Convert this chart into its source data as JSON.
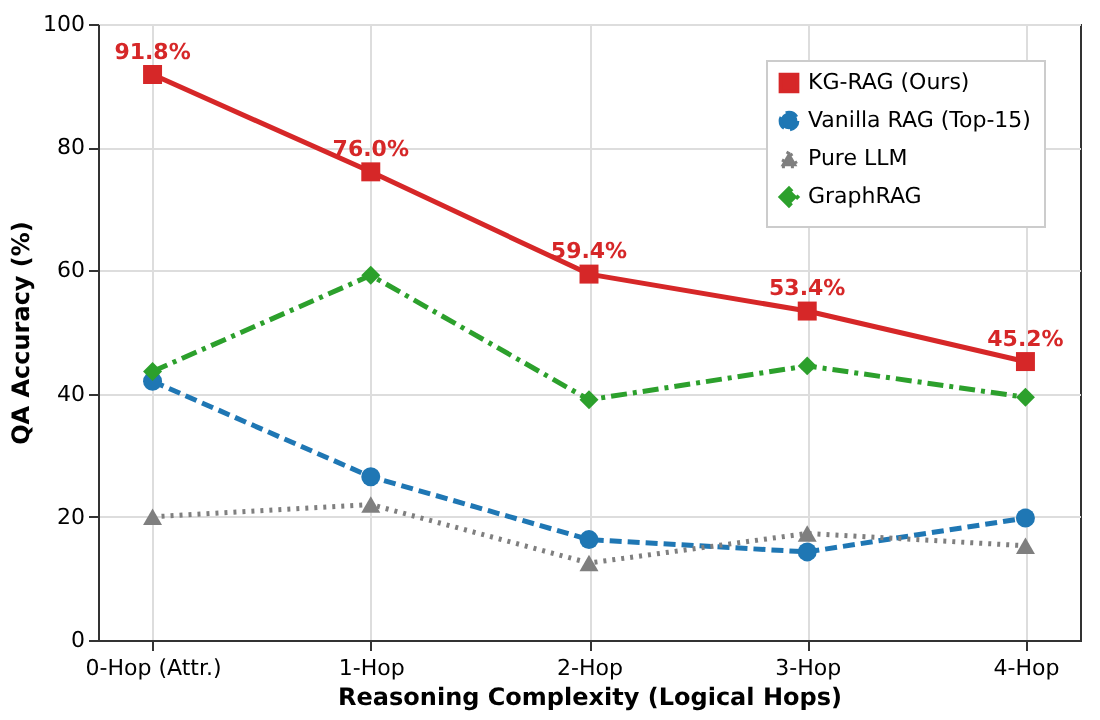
{
  "chart_data": {
    "type": "line",
    "xlabel": "Reasoning Complexity (Logical Hops)",
    "ylabel": "QA Accuracy (%)",
    "categories": [
      "0-Hop (Attr.)",
      "1-Hop",
      "2-Hop",
      "3-Hop",
      "4-Hop"
    ],
    "series": [
      {
        "name": "KG-RAG (Ours)",
        "color": "#d62728",
        "marker": "square",
        "line_style": "solid",
        "values": [
          91.8,
          76.0,
          59.4,
          53.4,
          45.2
        ],
        "value_labels": [
          "91.8%",
          "76.0%",
          "59.4%",
          "53.4%",
          "45.2%"
        ]
      },
      {
        "name": "Vanilla RAG (Top-15)",
        "color": "#1f77b4",
        "marker": "circle",
        "line_style": "dashed",
        "values": [
          42,
          26.5,
          16.3,
          14.3,
          19.8
        ]
      },
      {
        "name": "Pure LLM",
        "color": "#7f7f7f",
        "marker": "triangle",
        "line_style": "dotted",
        "values": [
          20,
          22,
          12.5,
          17.3,
          15.3
        ]
      },
      {
        "name": "GraphRAG",
        "color": "#2ca02c",
        "marker": "diamond",
        "line_style": "dashdot",
        "values": [
          43.6,
          59.2,
          39,
          44.5,
          39.4
        ]
      }
    ],
    "ylim": [
      0,
      100
    ],
    "yticks": [
      0,
      20,
      40,
      60,
      80,
      100
    ],
    "grid": true,
    "legend": "top right"
  }
}
